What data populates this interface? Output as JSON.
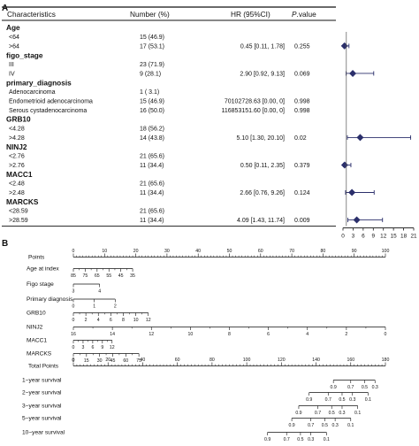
{
  "figure": {
    "panel_a_label": "A",
    "panel_b_label": "B"
  },
  "forest": {
    "headers": {
      "characteristics": "Characteristics",
      "number": "Number (%)",
      "hr": "HR (95%CI)",
      "p_italic": "P",
      "p_rest": ".value"
    },
    "rows": [
      {
        "kind": "group",
        "label": "Age"
      },
      {
        "kind": "level",
        "label": "<64",
        "number": "15 (46.9)"
      },
      {
        "kind": "level",
        "label": ">64",
        "number": "17 (53.1)",
        "hr_text": "0.45 [0.11, 1.78]",
        "p": "0.255",
        "hr": 0.45,
        "lo": 0.11,
        "hi": 1.78
      },
      {
        "kind": "group",
        "label": "figo_stage"
      },
      {
        "kind": "level",
        "label": "III",
        "number": "23 (71.9)"
      },
      {
        "kind": "level",
        "label": "IV",
        "number": "9 (28.1)",
        "hr_text": "2.90 [0.92, 9.13]",
        "p": "0.069",
        "hr": 2.9,
        "lo": 0.92,
        "hi": 9.13
      },
      {
        "kind": "group",
        "label": "primary_diagnosis"
      },
      {
        "kind": "level",
        "label": "Adenocarcinoma",
        "number": "1 ( 3.1)"
      },
      {
        "kind": "level",
        "label": "Endometrioid adenocarcinoma",
        "number": "15 (46.9)",
        "hr_text": "70102728.63 [0.00, 0]",
        "p": "0.998"
      },
      {
        "kind": "level",
        "label": "Serous cystadenocarcinoma",
        "number": "16 (50.0)",
        "hr_text": "116853151.60 [0.00, 0]",
        "p": "0.998"
      },
      {
        "kind": "group",
        "label": "GRB10"
      },
      {
        "kind": "level",
        "label": "<4.28",
        "number": "18 (56.2)"
      },
      {
        "kind": "level",
        "label": ">4.28",
        "number": "14 (43.8)",
        "hr_text": "5.10 [1.30, 20.10]",
        "p": "0.02",
        "hr": 5.1,
        "lo": 1.3,
        "hi": 20.1
      },
      {
        "kind": "group",
        "label": "NINJ2"
      },
      {
        "kind": "level",
        "label": "<2.76",
        "number": "21 (65.6)"
      },
      {
        "kind": "level",
        "label": ">2.76",
        "number": "11 (34.4)",
        "hr_text": "0.50 [0.11, 2.35]",
        "p": "0.379",
        "hr": 0.5,
        "lo": 0.11,
        "hi": 2.35
      },
      {
        "kind": "group",
        "label": "MACC1"
      },
      {
        "kind": "level",
        "label": "<2.48",
        "number": "21 (65.6)"
      },
      {
        "kind": "level",
        "label": ">2.48",
        "number": "11 (34.4)",
        "hr_text": "2.66 [0.76, 9.26]",
        "p": "0.124",
        "hr": 2.66,
        "lo": 0.76,
        "hi": 9.26
      },
      {
        "kind": "group",
        "label": "MARCKS"
      },
      {
        "kind": "level",
        "label": "<28.59",
        "number": "21 (65.6)"
      },
      {
        "kind": "level",
        "label": ">28.59",
        "number": "11 (34.4)",
        "hr_text": "4.09 [1.43, 11.74]",
        "p": "0.009",
        "hr": 4.09,
        "lo": 1.43,
        "hi": 11.74
      }
    ],
    "axis_ticks": [
      "0",
      "3",
      "6",
      "9",
      "12",
      "15",
      "18",
      "21"
    ]
  },
  "nomogram": {
    "rows": [
      {
        "label": "Points",
        "labels": [
          "0",
          "10",
          "20",
          "30",
          "40",
          "50",
          "60",
          "70",
          "80",
          "90",
          "100"
        ]
      },
      {
        "label": "Age at index",
        "labels": [
          "85",
          "75",
          "65",
          "55",
          "45",
          "35"
        ]
      },
      {
        "label": "Figo stage",
        "labels": [
          "3",
          "4"
        ]
      },
      {
        "label": "Primary diagnosis",
        "labels": [
          "0",
          "1",
          "2"
        ]
      },
      {
        "label": "GRB10",
        "labels": [
          "0",
          "2",
          "4",
          "6",
          "8",
          "10",
          "12"
        ]
      },
      {
        "label": "NINJ2",
        "labels": [
          "16",
          "14",
          "12",
          "10",
          "8",
          "6",
          "4",
          "2",
          "0"
        ]
      },
      {
        "label": "MACC1",
        "labels": [
          "0",
          "3",
          "6",
          "9",
          "12"
        ]
      },
      {
        "label": "MARCKS",
        "labels": [
          "0",
          "15",
          "30",
          "45",
          "60",
          "75"
        ]
      },
      {
        "label": "Total Points",
        "labels": [
          "0",
          "20",
          "40",
          "60",
          "80",
          "100",
          "120",
          "140",
          "160",
          "180"
        ]
      },
      {
        "label": "1−year survival",
        "labels": [
          "0.9",
          "0.7",
          "0.5",
          "0.3"
        ]
      },
      {
        "label": "2−year survival",
        "labels": [
          "0.9",
          "0.7",
          "0.5",
          "0.3",
          "0.1"
        ]
      },
      {
        "label": "3−year survival",
        "labels": [
          "0.9",
          "0.7",
          "0.5",
          "0.3",
          "0.1"
        ]
      },
      {
        "label": "5−year survival",
        "labels": [
          "0.9",
          "0.7",
          "0.5",
          "0.3",
          "0.1"
        ]
      },
      {
        "label": "10−year survival",
        "labels": [
          "0.9",
          "0.7",
          "0.5",
          "0.3",
          "0.1"
        ]
      }
    ]
  },
  "chart_data": [
    {
      "type": "scatter",
      "subtype": "forest plot",
      "xlim": [
        0,
        21
      ],
      "x_ticks": [
        0,
        3,
        6,
        9,
        12,
        15,
        18,
        21
      ],
      "reference_line": 1,
      "categories": [
        ">64",
        "IV",
        ">4.28",
        ">2.76",
        ">2.48",
        ">28.59"
      ],
      "hr": [
        0.45,
        2.9,
        5.1,
        0.5,
        2.66,
        4.09
      ],
      "ci_low": [
        0.11,
        0.92,
        1.3,
        0.11,
        0.76,
        1.43
      ],
      "ci_high": [
        1.78,
        9.13,
        20.1,
        2.35,
        9.26,
        11.74
      ],
      "p_values": [
        "0.255",
        "0.069",
        "0.02",
        "0.379",
        "0.124",
        "0.009"
      ]
    },
    {
      "type": "table",
      "subtype": "nomogram",
      "scales": [
        {
          "name": "Points",
          "range": [
            0,
            100
          ]
        },
        {
          "name": "Age at index",
          "values": [
            85,
            75,
            65,
            55,
            45,
            35
          ]
        },
        {
          "name": "Figo stage",
          "values": [
            3,
            4
          ]
        },
        {
          "name": "Primary diagnosis",
          "values": [
            0,
            1,
            2
          ]
        },
        {
          "name": "GRB10",
          "values": [
            0,
            2,
            4,
            6,
            8,
            10,
            12
          ]
        },
        {
          "name": "NINJ2",
          "values": [
            16,
            14,
            12,
            10,
            8,
            6,
            4,
            2,
            0
          ]
        },
        {
          "name": "MACC1",
          "values": [
            0,
            3,
            6,
            9,
            12
          ]
        },
        {
          "name": "MARCKS",
          "values": [
            0,
            15,
            30,
            45,
            60,
            75
          ]
        },
        {
          "name": "Total Points",
          "range": [
            0,
            180
          ]
        },
        {
          "name": "1-year survival",
          "values": [
            0.9,
            0.7,
            0.5,
            0.3
          ]
        },
        {
          "name": "2-year survival",
          "values": [
            0.9,
            0.7,
            0.5,
            0.3,
            0.1
          ]
        },
        {
          "name": "3-year survival",
          "values": [
            0.9,
            0.7,
            0.5,
            0.3,
            0.1
          ]
        },
        {
          "name": "5-year survival",
          "values": [
            0.9,
            0.7,
            0.5,
            0.3,
            0.1
          ]
        },
        {
          "name": "10-year survival",
          "values": [
            0.9,
            0.7,
            0.5,
            0.3,
            0.1
          ]
        }
      ]
    }
  ]
}
